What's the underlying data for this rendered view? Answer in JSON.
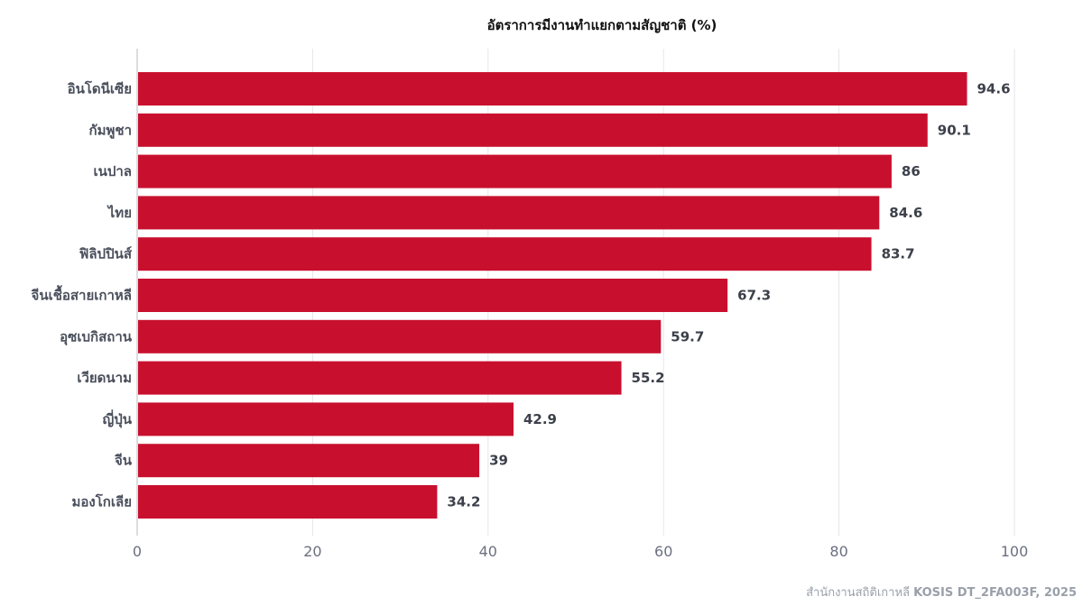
{
  "chart_data": {
    "type": "bar",
    "orientation": "horizontal",
    "title": "อัตราการมีงานทำแยกตามสัญชาติ (%)",
    "categories": [
      "อินโดนีเซีย",
      "กัมพูชา",
      "เนปาล",
      "ไทย",
      "ฟิลิปปินส์",
      "จีนเชื้อสายเกาหลี",
      "อุซเบกิสถาน",
      "เวียดนาม",
      "ญี่ปุ่น",
      "จีน",
      "มองโกเลีย"
    ],
    "values": [
      94.6,
      90.1,
      86,
      84.6,
      83.7,
      67.3,
      59.7,
      55.2,
      42.9,
      39,
      34.2
    ],
    "xlim": [
      0,
      100
    ],
    "xticks": [
      0,
      20,
      40,
      60,
      80,
      100
    ],
    "grid": true,
    "bar_color": "#c8102e"
  },
  "source": {
    "prefix": "สำนักงานสถิติเกาหลี ",
    "strong": "KOSIS DT_2FA003F, 2025"
  }
}
